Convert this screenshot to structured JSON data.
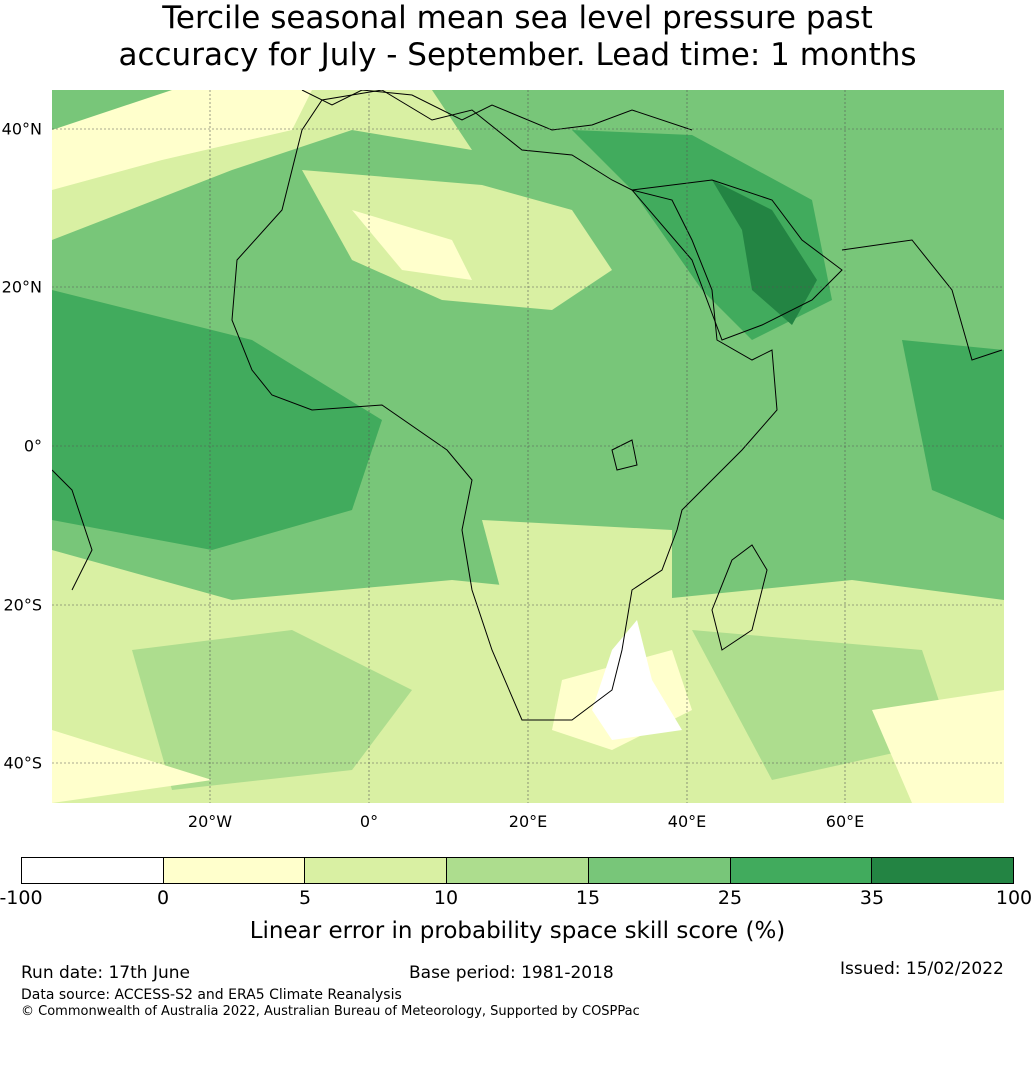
{
  "title": {
    "line1": "Tercile seasonal mean sea level pressure past",
    "line2": "accuracy for July - September. Lead time: 1 months"
  },
  "map": {
    "lat_labels": [
      "40°N",
      "20°N",
      "0°",
      "20°S",
      "40°S"
    ],
    "lon_labels": [
      "20°W",
      "0°",
      "20°E",
      "40°E",
      "60°E"
    ],
    "colors": {
      "ocean_base": "#78c679",
      "land_base": "#78c679",
      "level_lt0": "#ffffff",
      "level_0_5": "#ffffcc",
      "level_5_10": "#d9f0a3",
      "level_10_15": "#addd8e",
      "level_15_25": "#78c679",
      "level_25_35": "#41ab5d",
      "level_35_100": "#238443",
      "coastline": "#000000",
      "gridline": "#555555"
    }
  },
  "colorbar": {
    "ticks": [
      "-100",
      "0",
      "5",
      "10",
      "15",
      "25",
      "35",
      "100"
    ],
    "colors": [
      "#ffffff",
      "#ffffcc",
      "#d9f0a3",
      "#addd8e",
      "#78c679",
      "#41ab5d",
      "#238443"
    ],
    "label": "Linear error in probability space skill score (%)"
  },
  "footer": {
    "run_date": "Run date: 17th June",
    "base_period": "Base period: 1981-2018",
    "issued": "Issued: 15/02/2022",
    "data_source": "Data source: ACCESS-S2 and ERA5 Climate Reanalysis",
    "copyright": "© Commonwealth of Australia 2022, Australian Bureau of Meteorology, Supported by COSPPac"
  }
}
